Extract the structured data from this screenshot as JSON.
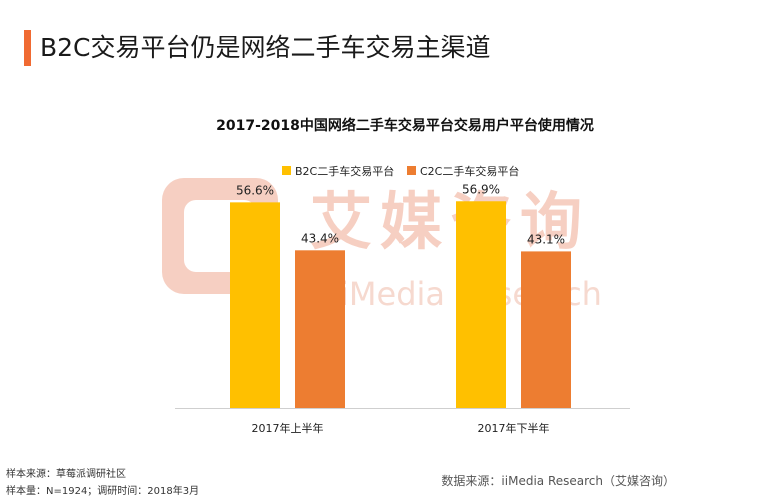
{
  "page": {
    "title": "B2C交易平台仍是网络二手车交易主渠道",
    "accent_color": "#f06a32"
  },
  "watermark": {
    "cn": "艾媒咨询",
    "en": "iMedia Research"
  },
  "chart_data": {
    "type": "bar",
    "title": "2017-2018中国网络二手车交易平台交易用户平台使用情况",
    "categories": [
      "2017年上半年",
      "2017年下半年"
    ],
    "series": [
      {
        "name": "B2C二手车交易平台",
        "values": [
          56.6,
          56.9
        ],
        "labels": [
          "56.6%",
          "56.9%"
        ],
        "color": "#ffc000"
      },
      {
        "name": "C2C二手车交易平台",
        "values": [
          43.4,
          43.1
        ],
        "labels": [
          "43.4%",
          "43.1%"
        ],
        "color": "#ed7d31"
      }
    ],
    "ylim": [
      0,
      60
    ],
    "grid": false,
    "legend_position": "top"
  },
  "footer": {
    "sample_source": "样本来源：草莓派调研社区",
    "sample_info": "样本量：N=1924；调研时间：2018年3月",
    "data_source": "数据来源：iiMedia Research（艾媒咨询）"
  }
}
